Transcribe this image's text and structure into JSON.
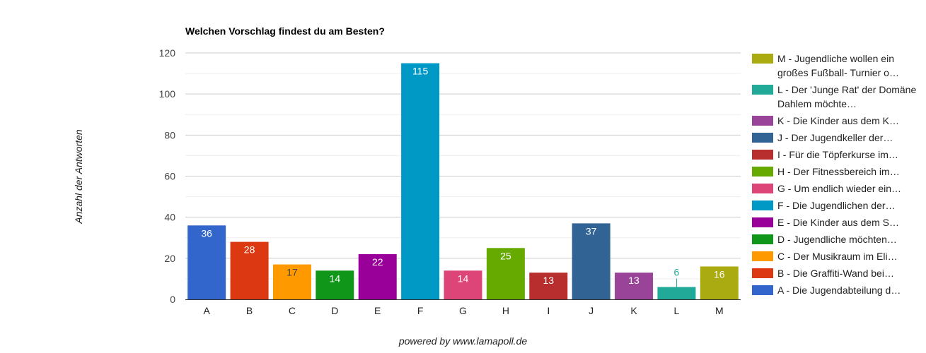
{
  "chart_data": {
    "type": "bar",
    "title": "Welchen Vorschlag findest du am Besten?",
    "ylabel": "Anzahl der Antworten",
    "xlabel": "",
    "categories": [
      "A",
      "B",
      "C",
      "D",
      "E",
      "F",
      "G",
      "H",
      "I",
      "J",
      "K",
      "L",
      "M"
    ],
    "values": [
      36,
      28,
      17,
      14,
      22,
      115,
      14,
      25,
      13,
      37,
      13,
      6,
      16
    ],
    "colors": [
      "#3366cc",
      "#dc3912",
      "#ff9900",
      "#109618",
      "#990099",
      "#0099c6",
      "#dd4477",
      "#66aa00",
      "#b82e2e",
      "#316395",
      "#994499",
      "#22aa99",
      "#aaaa11"
    ],
    "ylim": [
      0,
      120
    ],
    "yticks": [
      0,
      20,
      40,
      60,
      80,
      100,
      120
    ],
    "grid": true,
    "legend_position": "right",
    "legend": [
      "M - Jugendliche wollen ein großes Fußball- Turnier o…",
      "L - Der 'Junge Rat' der Domäne Dahlem möchte…",
      "K - Die Kinder aus dem K…",
      "J - Der Jugendkeller der…",
      "I - Für die Töpferkurse im…",
      "H - Der Fitnessbereich im…",
      "G - Um endlich wieder ein…",
      "F - Die Jugendlichen der…",
      "E - Die Kinder aus dem S…",
      "D - Jugendliche möchten…",
      "C - Der Musikraum im Eli…",
      "B - Die Graffiti-Wand bei…",
      "A - Die Jugendabteilung d…"
    ]
  },
  "footer": "powered by www.lamapoll.de"
}
